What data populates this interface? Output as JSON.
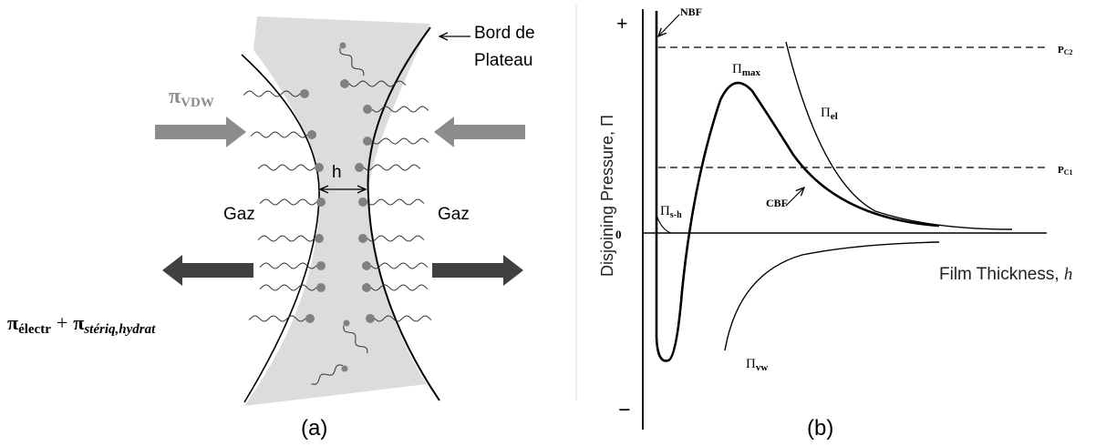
{
  "panel_a": {
    "label": "(a)",
    "pressure_vdw": {
      "symbol": "π",
      "sub": "VDW"
    },
    "plateau_border": [
      "Bord de",
      "Plateau"
    ],
    "thickness": "h",
    "gas_left": "Gaz",
    "gas_right": "Gaz",
    "pressure_repulsive": {
      "symbol1": "π",
      "sub1": "électr",
      "plus": "+",
      "symbol2": "π",
      "sub2": "stériq,hydrat"
    }
  },
  "panel_b": {
    "label": "(b)",
    "plus": "+",
    "minus": "−",
    "zero": "0",
    "y_axis": "Disjoining Pressure, Π",
    "x_axis": {
      "text": "Film Thickness, ",
      "var": "h"
    },
    "nbf": "NBF",
    "cbf": "CBF",
    "pi_max": {
      "symbol": "Π",
      "sub": "max"
    },
    "pi_el": {
      "symbol": "Π",
      "sub": "el"
    },
    "pi_sh": {
      "symbol": "Π",
      "sub": "s-h"
    },
    "pi_vw": {
      "symbol": "Π",
      "sub": "vw"
    },
    "pc2": {
      "symbol": "P",
      "sub": "C2"
    },
    "pc1": {
      "symbol": "P",
      "sub": "C1"
    }
  }
}
